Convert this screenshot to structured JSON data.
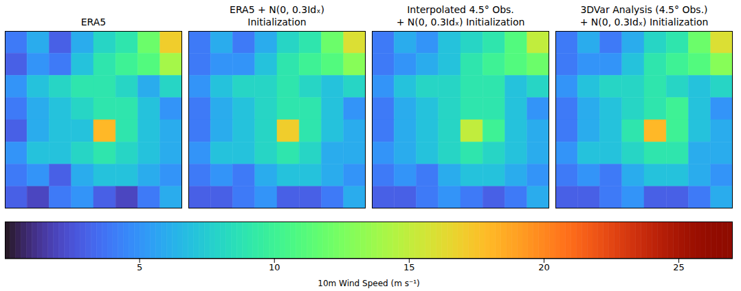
{
  "chart_data": {
    "type": "heatmap",
    "tick_labels": false,
    "panels": [
      {
        "title": [
          "ERA5"
        ],
        "cells": [
          [
            4,
            6,
            3,
            6,
            8,
            9,
            12,
            17
          ],
          [
            3,
            5,
            4,
            7,
            9,
            10,
            11,
            14
          ],
          [
            5,
            7,
            8,
            9,
            9,
            8,
            6,
            8
          ],
          [
            4,
            6,
            7,
            8,
            9,
            9,
            7,
            5
          ],
          [
            3,
            6,
            7,
            7,
            18,
            9,
            7,
            6
          ],
          [
            5,
            7,
            7,
            8,
            9,
            8,
            7,
            6
          ],
          [
            4,
            5,
            3,
            6,
            7,
            7,
            6,
            5
          ],
          [
            3,
            2,
            4,
            5,
            3,
            2,
            4,
            6
          ]
        ]
      },
      {
        "title": [
          "ERA5 + N(0, 0.3Idₓ)",
          "Initialization"
        ],
        "cells": [
          [
            4,
            6,
            4,
            6,
            8,
            9,
            12,
            16
          ],
          [
            4,
            5,
            5,
            7,
            9,
            10,
            11,
            13
          ],
          [
            5,
            7,
            8,
            8,
            9,
            8,
            7,
            8
          ],
          [
            4,
            6,
            7,
            8,
            9,
            9,
            7,
            5
          ],
          [
            4,
            6,
            7,
            8,
            17,
            9,
            7,
            6
          ],
          [
            5,
            7,
            7,
            8,
            9,
            8,
            6,
            6
          ],
          [
            4,
            5,
            4,
            6,
            7,
            7,
            6,
            5
          ],
          [
            3,
            3,
            4,
            5,
            3,
            3,
            4,
            6
          ]
        ]
      },
      {
        "title": [
          "Interpolated 4.5° Obs.",
          "+ N(0, 0.3Idₓ) Initialization"
        ],
        "cells": [
          [
            4,
            6,
            5,
            7,
            8,
            9,
            11,
            15
          ],
          [
            4,
            5,
            6,
            7,
            9,
            10,
            11,
            12
          ],
          [
            5,
            7,
            8,
            8,
            9,
            9,
            7,
            8
          ],
          [
            4,
            6,
            7,
            8,
            9,
            9,
            7,
            5
          ],
          [
            4,
            6,
            7,
            8,
            15,
            10,
            7,
            6
          ],
          [
            5,
            6,
            7,
            8,
            9,
            8,
            7,
            6
          ],
          [
            4,
            5,
            4,
            6,
            7,
            7,
            6,
            5
          ],
          [
            3,
            3,
            4,
            5,
            4,
            3,
            4,
            6
          ]
        ]
      },
      {
        "title": [
          "3DVar Analysis (4.5° Obs.)",
          "+ N(0, 0.3Idₓ) Initialization"
        ],
        "cells": [
          [
            4,
            6,
            4,
            6,
            8,
            9,
            12,
            16
          ],
          [
            4,
            5,
            5,
            7,
            9,
            10,
            11,
            13
          ],
          [
            5,
            7,
            8,
            8,
            9,
            8,
            7,
            8
          ],
          [
            4,
            6,
            7,
            8,
            9,
            10,
            7,
            5
          ],
          [
            4,
            6,
            7,
            9,
            18,
            10,
            7,
            6
          ],
          [
            5,
            7,
            7,
            8,
            9,
            9,
            6,
            6
          ],
          [
            4,
            5,
            4,
            6,
            7,
            7,
            6,
            5
          ],
          [
            3,
            3,
            4,
            5,
            3,
            3,
            4,
            6
          ]
        ]
      }
    ],
    "colorbar": {
      "label": "10m Wind Speed (m s⁻¹)",
      "range": [
        0,
        27
      ],
      "ticks": [
        5,
        10,
        15,
        20,
        25
      ]
    }
  }
}
